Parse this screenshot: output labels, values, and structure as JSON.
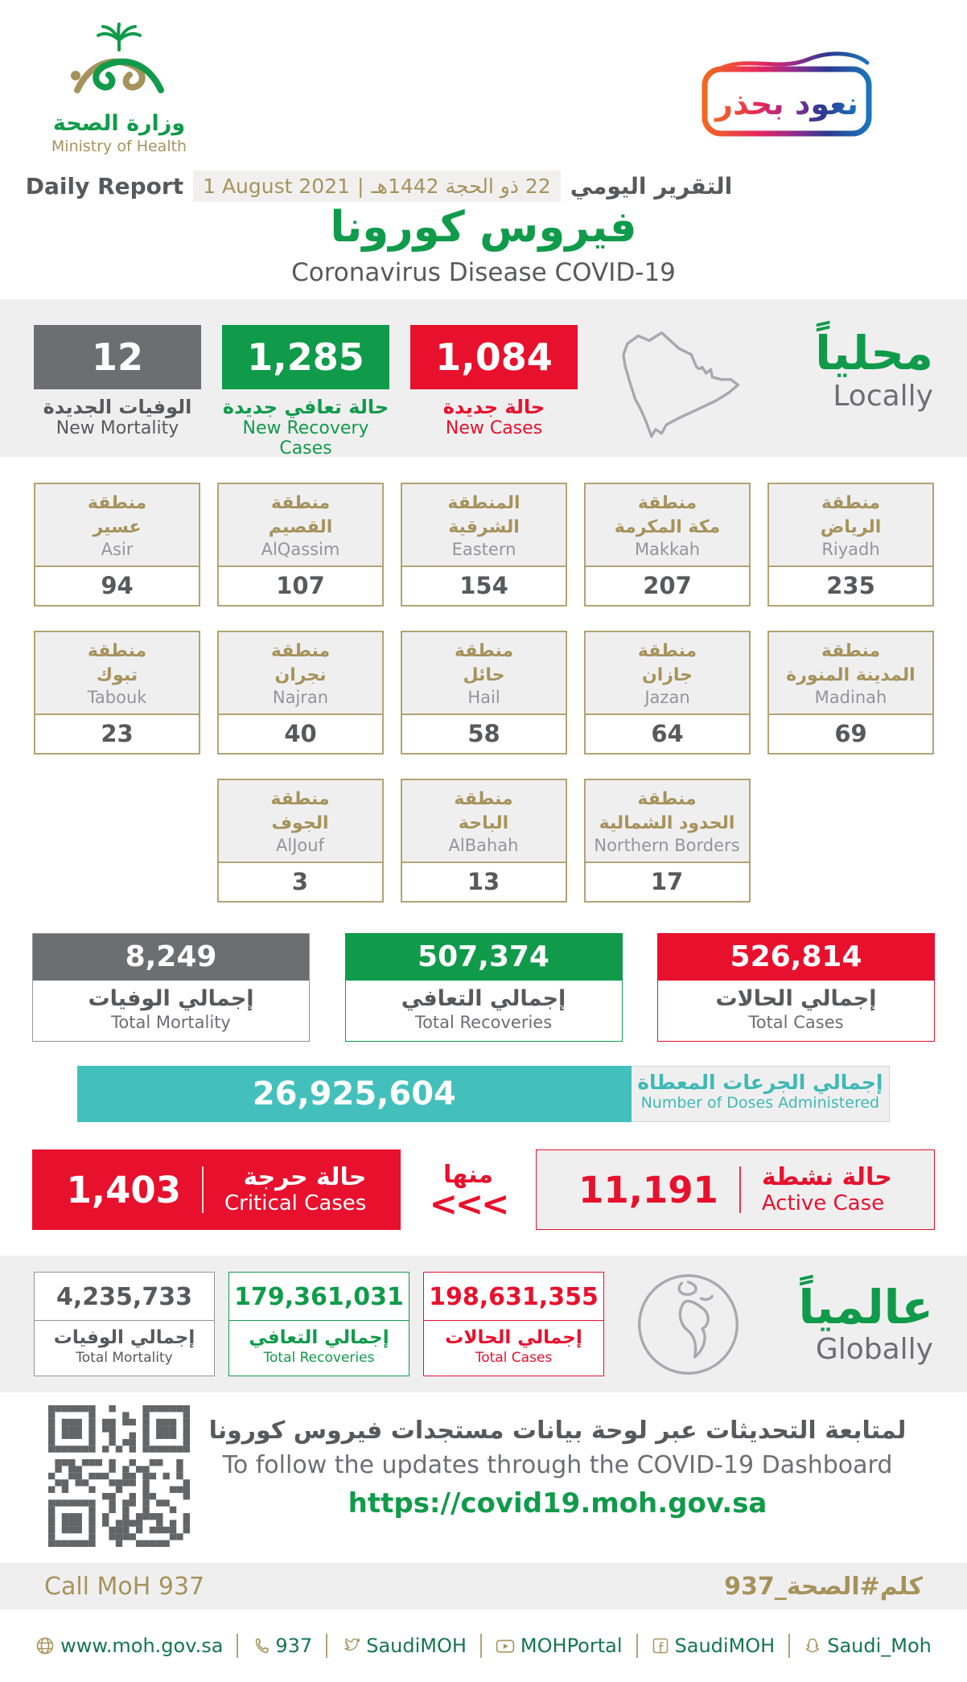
{
  "colors": {
    "green": "#109B4A",
    "red": "#E8112D",
    "gray_box": "#6D6E71",
    "gold": "#A6935C",
    "teal": "#44C0BC",
    "band": "#F0EFF0"
  },
  "header": {
    "logo_ar": "وزارة الصحة",
    "logo_en": "Ministry of Health",
    "badge_text": "نعود بحذر",
    "report_label_en": "Daily Report",
    "report_label_ar": "التقرير اليومي",
    "date_en": "1 August 2021",
    "date_separator": "|",
    "date_ar": "22 ذو الحجة 1442هـ",
    "title_ar": "فيروس كورونا",
    "title_en": "Coronavirus Disease COVID-19"
  },
  "locally": {
    "heading_ar": "محلياً",
    "heading_en": "Locally",
    "stats": [
      {
        "value": "12",
        "label_ar": "الوفيات الجديدة",
        "label_en": "New Mortality"
      },
      {
        "value": "1,285",
        "label_ar": "حالة تعافي جديدة",
        "label_en": "New Recovery Cases"
      },
      {
        "value": "1,084",
        "label_ar": "حالة جديدة",
        "label_en": "New Cases"
      }
    ]
  },
  "regions": {
    "rows": [
      {
        "cards": [
          {
            "ar1": "منطقة",
            "ar2": "عسير",
            "en": "Asir",
            "value": "94"
          },
          {
            "ar1": "منطقة",
            "ar2": "القصيم",
            "en": "AlQassim",
            "value": "107"
          },
          {
            "ar1": "المنطقة",
            "ar2": "الشرقية",
            "en": "Eastern",
            "value": "154"
          },
          {
            "ar1": "منطقة",
            "ar2": "مكة المكرمة",
            "en": "Makkah",
            "value": "207"
          },
          {
            "ar1": "منطقة",
            "ar2": "الرياض",
            "en": "Riyadh",
            "value": "235"
          }
        ]
      },
      {
        "cards": [
          {
            "ar1": "منطقة",
            "ar2": "تبوك",
            "en": "Tabouk",
            "value": "23"
          },
          {
            "ar1": "منطقة",
            "ar2": "نجران",
            "en": "Najran",
            "value": "40"
          },
          {
            "ar1": "منطقة",
            "ar2": "حائل",
            "en": "Hail",
            "value": "58"
          },
          {
            "ar1": "منطقة",
            "ar2": "جازان",
            "en": "Jazan",
            "value": "64"
          },
          {
            "ar1": "منطقة",
            "ar2": "المدينة المنورة",
            "en": "Madinah",
            "value": "69"
          }
        ]
      },
      {
        "cards": [
          {
            "ar1": "منطقة",
            "ar2": "الجوف",
            "en": "AlJouf",
            "value": "3"
          },
          {
            "ar1": "منطقة",
            "ar2": "الباحة",
            "en": "AlBahah",
            "value": "13"
          },
          {
            "ar1": "منطقة",
            "ar2": "الحدود الشمالية",
            "en": "Northern Borders",
            "value": "17"
          }
        ]
      }
    ]
  },
  "totals": [
    {
      "value": "8,249",
      "label_ar": "إجمالي الوفيات",
      "label_en": "Total Mortality"
    },
    {
      "value": "507,374",
      "label_ar": "إجمالي التعافي",
      "label_en": "Total Recoveries"
    },
    {
      "value": "526,814",
      "label_ar": "إجمالي الحالات",
      "label_en": "Total Cases"
    }
  ],
  "doses": {
    "value": "26,925,604",
    "label_ar": "إجمالي الجرعات المعطاة",
    "label_en": "Number of Doses Administered"
  },
  "cases_breakdown": {
    "critical": {
      "value": "1,403",
      "label_ar": "حالة حرجة",
      "label_en": "Critical Cases"
    },
    "of_which_ar": "منها",
    "chevrons": "<<<",
    "active": {
      "value": "11,191",
      "label_ar": "حالة نشطة",
      "label_en": "Active Case"
    }
  },
  "globally": {
    "heading_ar": "عالمياً",
    "heading_en": "Globally",
    "stats": [
      {
        "value": "4,235,733",
        "label_ar": "إجمالي الوفيات",
        "label_en": "Total Mortality"
      },
      {
        "value": "179,361,031",
        "label_ar": "إجمالي التعافي",
        "label_en": "Total Recoveries"
      },
      {
        "value": "198,631,355",
        "label_ar": "إجمالي الحالات",
        "label_en": "Total Cases"
      }
    ]
  },
  "dashboard": {
    "line_ar": "لمتابعة التحديثات عبر لوحة بيانات مستجدات فيروس كورونا",
    "line_en": "To follow the updates through the COVID-19 Dashboard",
    "url": "https://covid19.moh.gov.sa"
  },
  "strip": {
    "left": "Call MoH 937",
    "right": "كلم#الصحة_937"
  },
  "footer": {
    "items": [
      {
        "icon": "globe-icon",
        "label": "www.moh.gov.sa"
      },
      {
        "icon": "phone-icon",
        "label": "937"
      },
      {
        "icon": "twitter-icon",
        "label": "SaudiMOH"
      },
      {
        "icon": "youtube-icon",
        "label": "MOHPortal"
      },
      {
        "icon": "facebook-icon",
        "label": "SaudiMOH"
      },
      {
        "icon": "snapchat-icon",
        "label": "Saudi_Moh"
      }
    ]
  }
}
